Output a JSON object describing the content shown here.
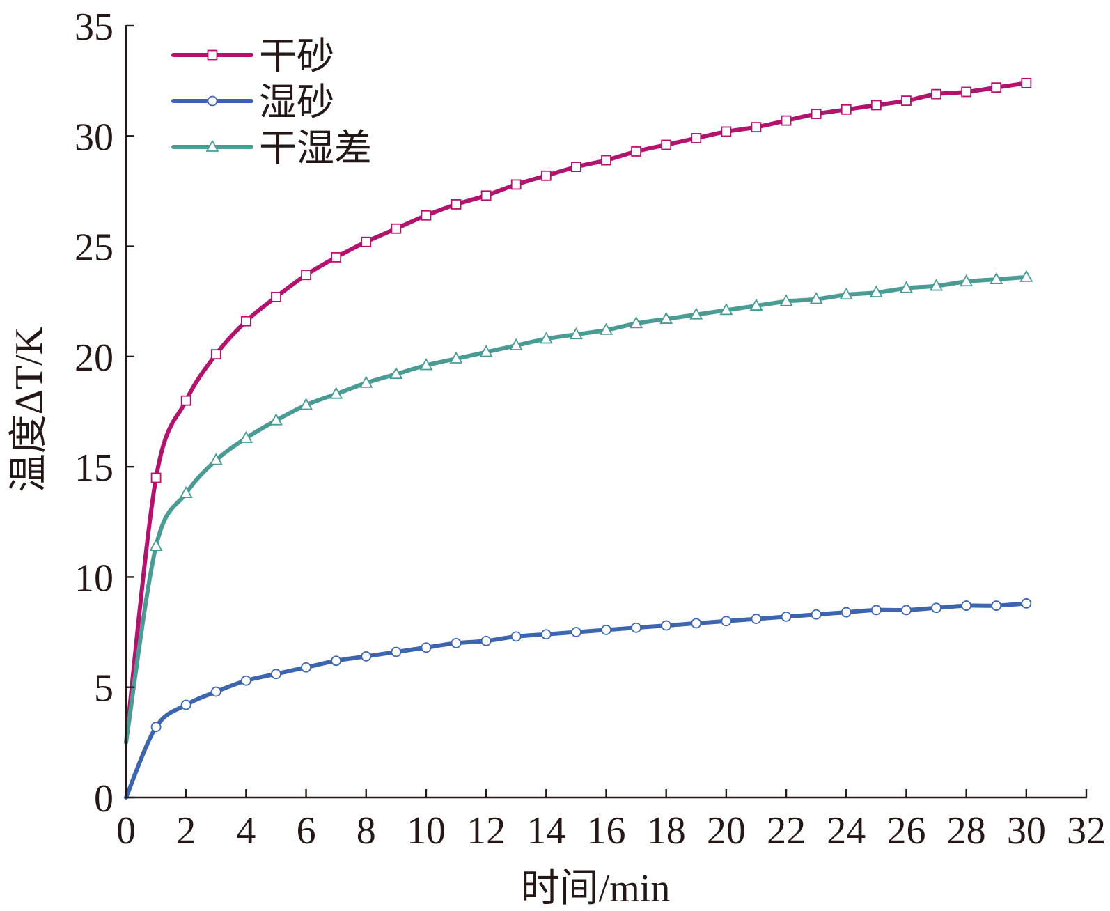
{
  "chart_data": {
    "type": "line",
    "xlabel": "时间/min",
    "ylabel": "温度ΔT/K",
    "xlim": [
      0,
      32
    ],
    "ylim": [
      0,
      35
    ],
    "xticks": [
      0,
      2,
      4,
      6,
      8,
      10,
      12,
      14,
      16,
      18,
      20,
      22,
      24,
      26,
      28,
      30,
      32
    ],
    "yticks": [
      0,
      5,
      10,
      15,
      20,
      25,
      30,
      35
    ],
    "grid": false,
    "legend_position": "top-left",
    "x": [
      0,
      1,
      2,
      3,
      4,
      5,
      6,
      7,
      8,
      9,
      10,
      11,
      12,
      13,
      14,
      15,
      16,
      17,
      18,
      19,
      20,
      21,
      22,
      23,
      24,
      25,
      26,
      27,
      28,
      29,
      30
    ],
    "series": [
      {
        "name": "干砂",
        "color": "#b3126d",
        "marker": "square",
        "values": [
          2.5,
          14.5,
          18.0,
          20.1,
          21.6,
          22.7,
          23.7,
          24.5,
          25.2,
          25.8,
          26.4,
          26.9,
          27.3,
          27.8,
          28.2,
          28.6,
          28.9,
          29.3,
          29.6,
          29.9,
          30.2,
          30.4,
          30.7,
          31.0,
          31.2,
          31.4,
          31.6,
          31.9,
          32.0,
          32.2,
          32.4
        ]
      },
      {
        "name": "湿砂",
        "color": "#3c65ae",
        "marker": "circle",
        "values": [
          0,
          3.2,
          4.2,
          4.8,
          5.3,
          5.6,
          5.9,
          6.2,
          6.4,
          6.6,
          6.8,
          7.0,
          7.1,
          7.3,
          7.4,
          7.5,
          7.6,
          7.7,
          7.8,
          7.9,
          8.0,
          8.1,
          8.2,
          8.3,
          8.4,
          8.5,
          8.5,
          8.6,
          8.7,
          8.7,
          8.8
        ]
      },
      {
        "name": "干湿差",
        "color": "#4b9b95",
        "marker": "triangle",
        "values": [
          2.5,
          11.4,
          13.8,
          15.3,
          16.3,
          17.1,
          17.8,
          18.3,
          18.8,
          19.2,
          19.6,
          19.9,
          20.2,
          20.5,
          20.8,
          21.0,
          21.2,
          21.5,
          21.7,
          21.9,
          22.1,
          22.3,
          22.5,
          22.6,
          22.8,
          22.9,
          23.1,
          23.2,
          23.4,
          23.5,
          23.6
        ]
      }
    ]
  }
}
